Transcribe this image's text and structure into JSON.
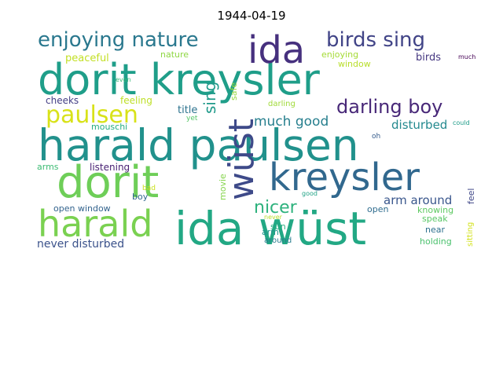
{
  "title": "1944-04-19",
  "words": [
    {
      "text": "harald paulsen",
      "color": "#21918c"
    },
    {
      "text": "dorit kreysler",
      "color": "#1f9e89"
    },
    {
      "text": "ida wüst",
      "color": "#22a884"
    },
    {
      "text": "dorit",
      "color": "#6ece58"
    },
    {
      "text": "kreysler",
      "color": "#31688e"
    },
    {
      "text": "harald",
      "color": "#7ad151"
    },
    {
      "text": "wüst",
      "color": "#3e4a89"
    },
    {
      "text": "ida",
      "color": "#46307e"
    },
    {
      "text": "enjoying nature",
      "color": "#2a788e"
    },
    {
      "text": "birds sing",
      "color": "#414487"
    },
    {
      "text": "paulsen",
      "color": "#d8e219"
    },
    {
      "text": "darling boy",
      "color": "#482878"
    },
    {
      "text": "nicer",
      "color": "#2db27d"
    },
    {
      "text": "sing",
      "color": "#1f9a8a"
    },
    {
      "text": "much good",
      "color": "#277f8e"
    },
    {
      "text": "disturbed",
      "color": "#23898e"
    },
    {
      "text": "arm around",
      "color": "#39568c"
    },
    {
      "text": "never disturbed",
      "color": "#3b528b"
    },
    {
      "text": "peaceful",
      "color": "#c2df23"
    },
    {
      "text": "nature",
      "color": "#8fd744"
    },
    {
      "text": "enjoying",
      "color": "#a5db36"
    },
    {
      "text": "window",
      "color": "#b8de29"
    },
    {
      "text": "birds",
      "color": "#453781"
    },
    {
      "text": "much",
      "color": "#440154"
    },
    {
      "text": "even",
      "color": "#35b779"
    },
    {
      "text": "safe",
      "color": "#95d840"
    },
    {
      "text": "cheeks",
      "color": "#433e85"
    },
    {
      "text": "feeling",
      "color": "#bddf26"
    },
    {
      "text": "title",
      "color": "#2c728e"
    },
    {
      "text": "yet",
      "color": "#56c667"
    },
    {
      "text": "darling",
      "color": "#a0da39"
    },
    {
      "text": "mouschi",
      "color": "#25ac82"
    },
    {
      "text": "could",
      "color": "#1e9c89"
    },
    {
      "text": "oh",
      "color": "#365c8d"
    },
    {
      "text": "arms",
      "color": "#3dbc74"
    },
    {
      "text": "listening",
      "color": "#482173"
    },
    {
      "text": "movie",
      "color": "#84d44b"
    },
    {
      "text": "bad",
      "color": "#cae11f"
    },
    {
      "text": "boy",
      "color": "#31688e"
    },
    {
      "text": "good",
      "color": "#20a386"
    },
    {
      "text": "feel",
      "color": "#3f4788"
    },
    {
      "text": "open window",
      "color": "#33638d"
    },
    {
      "text": "open",
      "color": "#2f6c8e"
    },
    {
      "text": "knowing",
      "color": "#5ec962"
    },
    {
      "text": "speak",
      "color": "#58c765"
    },
    {
      "text": "sun",
      "color": "#28ae80"
    },
    {
      "text": "arm",
      "color": "#1f948c"
    },
    {
      "text": "never",
      "color": "#b5de2b"
    },
    {
      "text": "near",
      "color": "#2d708e"
    },
    {
      "text": "around",
      "color": "#287d8e"
    },
    {
      "text": "holding",
      "color": "#4ac16d"
    },
    {
      "text": "sitting",
      "color": "#d2e21b"
    }
  ]
}
